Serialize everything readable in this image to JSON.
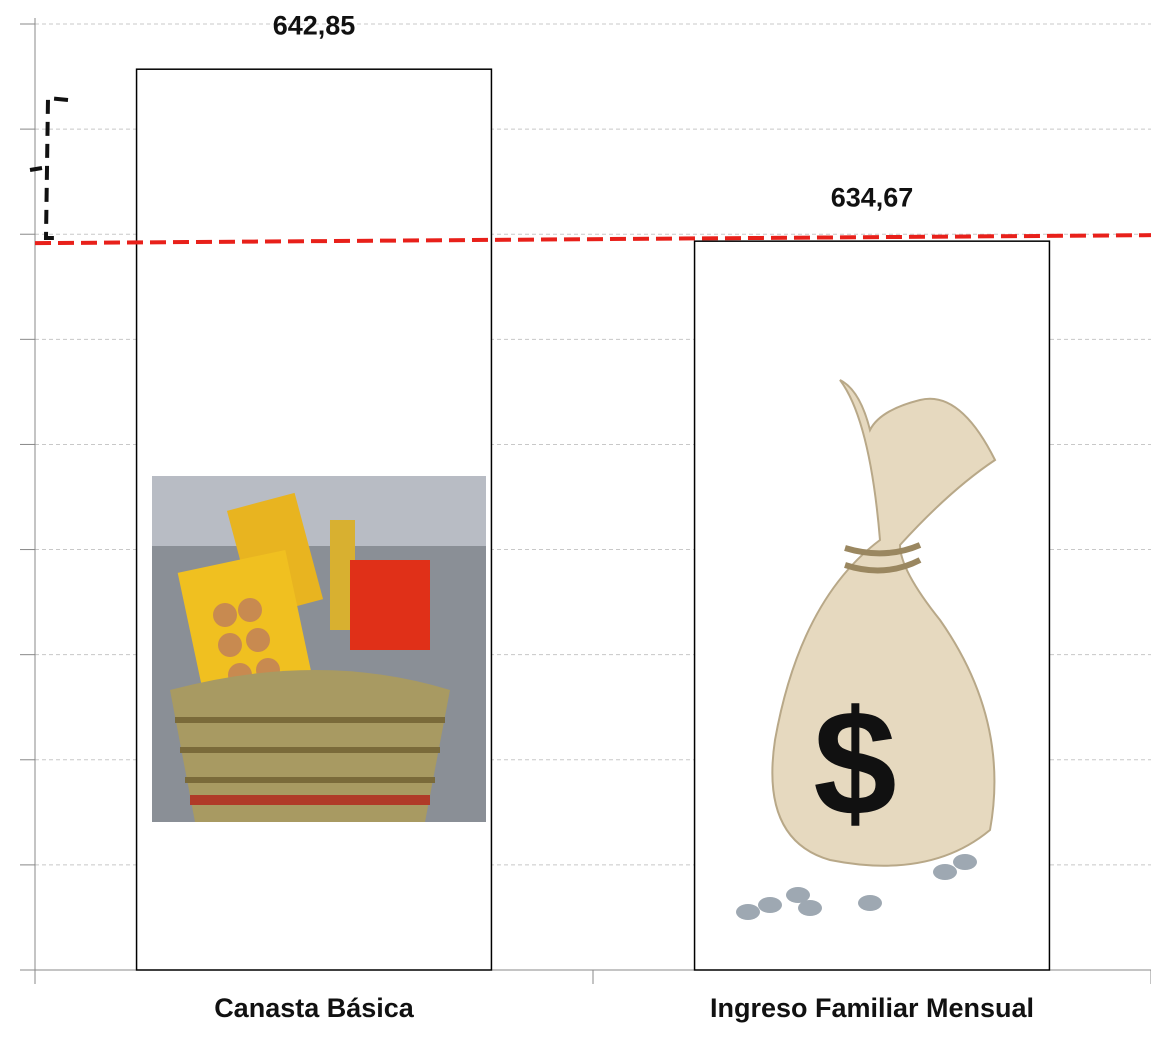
{
  "chart_data": {
    "type": "bar",
    "categories": [
      "Canasta Básica",
      "Ingreso Familiar Mensual"
    ],
    "values": [
      642.85,
      634.67
    ],
    "value_labels": [
      "642,85",
      "634,67"
    ],
    "color": "#ffffff",
    "ylim": [
      600,
      645
    ],
    "yticks": [
      600,
      605,
      610,
      615,
      620,
      625,
      630,
      635,
      640,
      645
    ],
    "grid": true
  }
}
